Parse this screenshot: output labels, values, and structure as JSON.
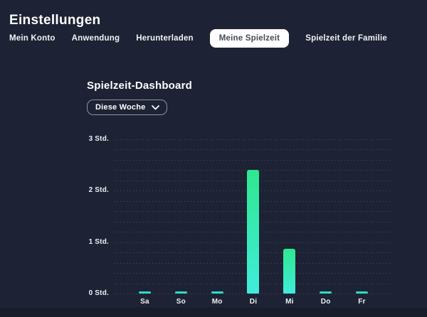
{
  "page": {
    "title": "Einstellungen"
  },
  "tabs": [
    {
      "label": "Mein Konto",
      "active": false
    },
    {
      "label": "Anwendung",
      "active": false
    },
    {
      "label": "Herunterladen",
      "active": false
    },
    {
      "label": "Meine Spielzeit",
      "active": true
    },
    {
      "label": "Spielzeit der Familie",
      "active": false
    }
  ],
  "dashboard": {
    "title": "Spielzeit-Dashboard",
    "range_selector": {
      "value": "Diese Woche",
      "icon": "chevron-down-icon"
    }
  },
  "chart_data": {
    "type": "bar",
    "title": "Spielzeit-Dashboard",
    "categories": [
      "Sa",
      "So",
      "Mo",
      "Di",
      "Mi",
      "Do",
      "Fr"
    ],
    "values": [
      0.04,
      0.04,
      0.04,
      2.4,
      0.87,
      0.04,
      0.04
    ],
    "unit": "Std.",
    "xlabel": "",
    "ylabel": "",
    "ylim": [
      0,
      3
    ],
    "y_tick_labels": [
      "0 Std.",
      "1 Std.",
      "2 Std.",
      "3 Std."
    ],
    "minor_gridlines_per_hour": 5,
    "grid": "dotted-horizontal",
    "legend_position": "none",
    "bar_color_top": "#2ee88f",
    "bar_color_bottom": "#41ecdb",
    "tiny_bar_color": "#2cdcc5"
  },
  "colors": {
    "background": "#1d2234",
    "footer_strip": "#181d2b",
    "gridline": "#3d4459",
    "active_tab_bg": "#ffffff",
    "active_tab_text": "#454b59",
    "accent_green": "#2ee88f",
    "accent_cyan": "#41ecdb"
  }
}
